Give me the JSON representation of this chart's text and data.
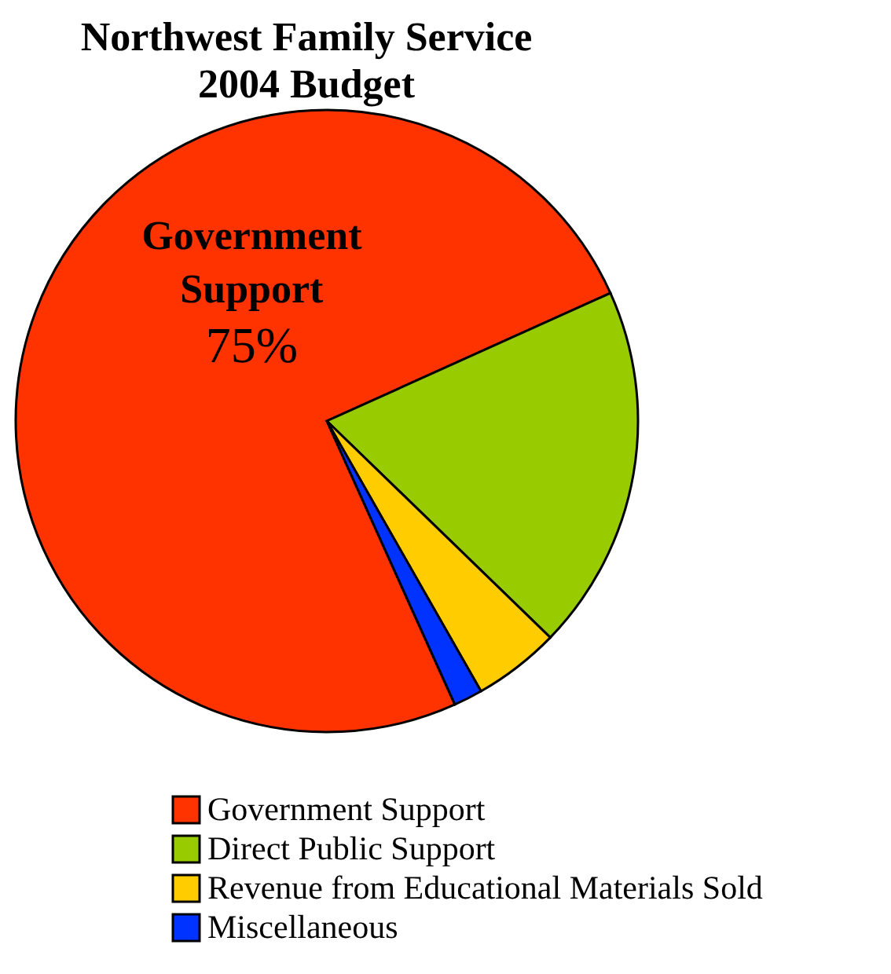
{
  "chart_data": {
    "type": "pie",
    "title": "Northwest Family Service\n2004 Budget",
    "categories": [
      "Government Support",
      "Direct Public Support",
      "Revenue from Educational Materials Sold",
      "Miscellaneous"
    ],
    "values": [
      75,
      19,
      4.5,
      1.5
    ],
    "colors": [
      "#ff3300",
      "#99cc00",
      "#ffcc00",
      "#0033ff"
    ],
    "value_labels": [
      "75%",
      null,
      null,
      null
    ],
    "legend": "bottom"
  }
}
